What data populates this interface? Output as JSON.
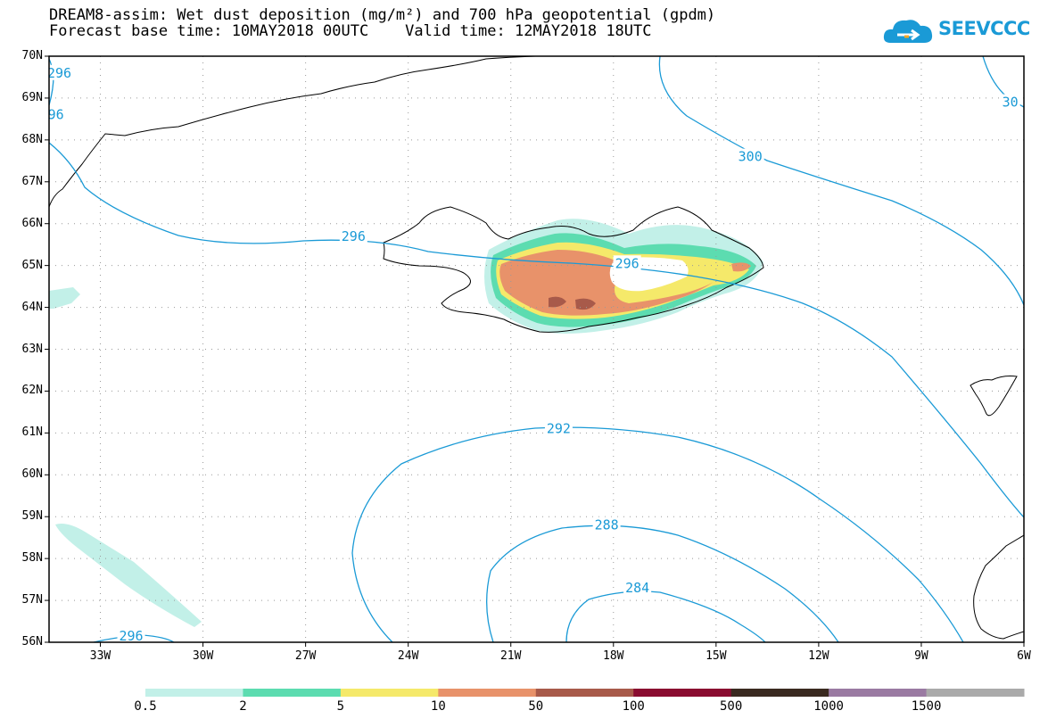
{
  "title": {
    "line1": "DREAM8-assim: Wet dust deposition (mg/m²) and 700 hPa geopotential (gpdm)",
    "line2": "Forecast base time: 10MAY2018 00UTC    Valid time: 12MAY2018 18UTC"
  },
  "logo": {
    "text": "SEEVCCC",
    "icon": "cloud-logo-icon",
    "color": "#1a9ad6"
  },
  "map": {
    "lat_labels": [
      "70N",
      "69N",
      "68N",
      "67N",
      "66N",
      "65N",
      "64N",
      "63N",
      "62N",
      "61N",
      "60N",
      "59N",
      "58N",
      "57N",
      "56N"
    ],
    "lon_labels": [
      "33W",
      "30W",
      "27W",
      "24W",
      "21W",
      "18W",
      "15W",
      "12W",
      "9W",
      "6W"
    ],
    "lat_range": [
      56,
      70
    ],
    "lon_range": [
      -34.5,
      -6
    ],
    "contour_color": "#1a9ad6",
    "contour_labels": [
      {
        "text": "296",
        "lat": 69.6,
        "lon": -34.2
      },
      {
        "text": "96",
        "lat": 68.6,
        "lon": -34.3
      },
      {
        "text": "30",
        "lat": 68.9,
        "lon": -6.4
      },
      {
        "text": "300",
        "lat": 67.6,
        "lon": -14.0
      },
      {
        "text": "296",
        "lat": 65.7,
        "lon": -25.6
      },
      {
        "text": "296",
        "lat": 65.05,
        "lon": -17.6
      },
      {
        "text": "292",
        "lat": 61.1,
        "lon": -19.6
      },
      {
        "text": "288",
        "lat": 58.8,
        "lon": -18.2
      },
      {
        "text": "284",
        "lat": 57.3,
        "lon": -17.3
      },
      {
        "text": "296",
        "lat": 56.15,
        "lon": -32.1
      }
    ]
  },
  "colorbar": {
    "labels": [
      "0.5",
      "2",
      "5",
      "10",
      "50",
      "100",
      "500",
      "1000",
      "1500"
    ],
    "colors": [
      "#c2f0e8",
      "#5cdcb0",
      "#f5e96a",
      "#e8926a",
      "#a85a4a",
      "#8a0c30",
      "#3a2a20",
      "#9a7aa2",
      "#aaaaaa"
    ]
  }
}
